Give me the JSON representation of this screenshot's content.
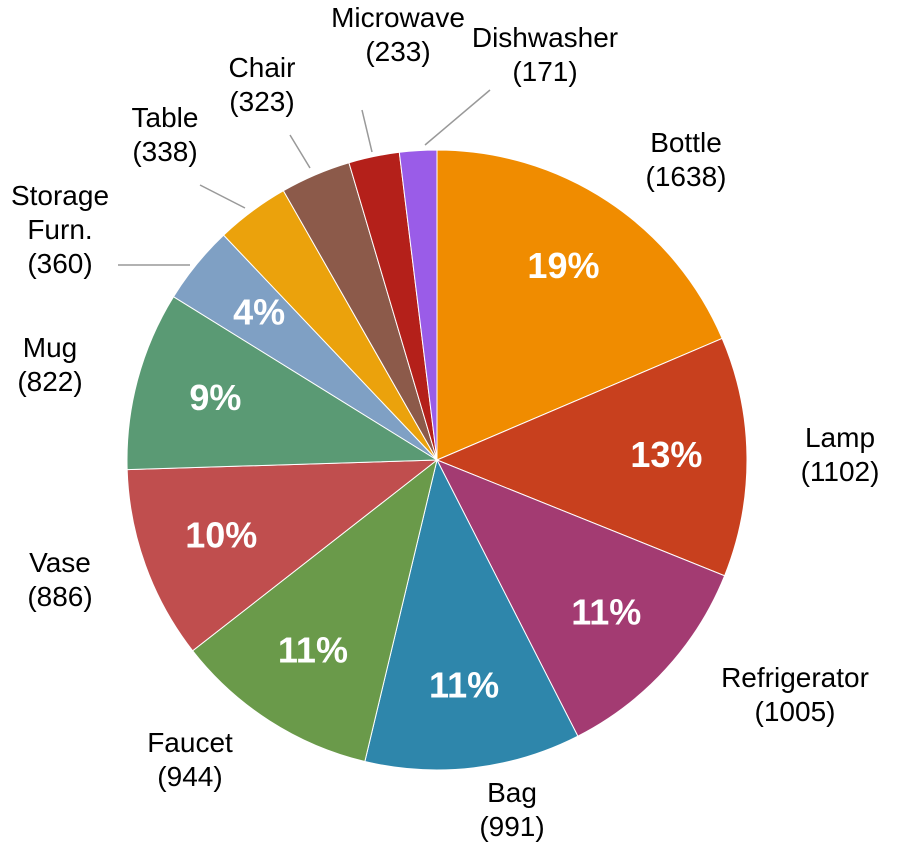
{
  "chart_data": {
    "type": "pie",
    "categories": [
      "Bottle",
      "Lamp",
      "Refrigerator",
      "Bag",
      "Faucet",
      "Vase",
      "Mug",
      "Storage Furn.",
      "Table",
      "Chair",
      "Microwave",
      "Dishwasher"
    ],
    "values": [
      1638,
      1102,
      1005,
      991,
      944,
      886,
      822,
      360,
      338,
      323,
      233,
      171
    ],
    "value_labels": [
      "(1638)",
      "(1102)",
      "(1005)",
      "(991)",
      "(944)",
      "(886)",
      "(822)",
      "(360)",
      "(338)",
      "(323)",
      "(233)",
      "(171)"
    ],
    "percent_labels": [
      "19%",
      "13%",
      "11%",
      "11%",
      "11%",
      "10%",
      "9%",
      "4%",
      null,
      null,
      null,
      null
    ],
    "colors": [
      "#f08c00",
      "#c8401e",
      "#a33b72",
      "#2e86ab",
      "#6a9a4a",
      "#c04e4e",
      "#5a9a74",
      "#7fa0c4",
      "#eba20c",
      "#8c5a4a",
      "#b4201a",
      "#9a5ce8"
    ]
  }
}
